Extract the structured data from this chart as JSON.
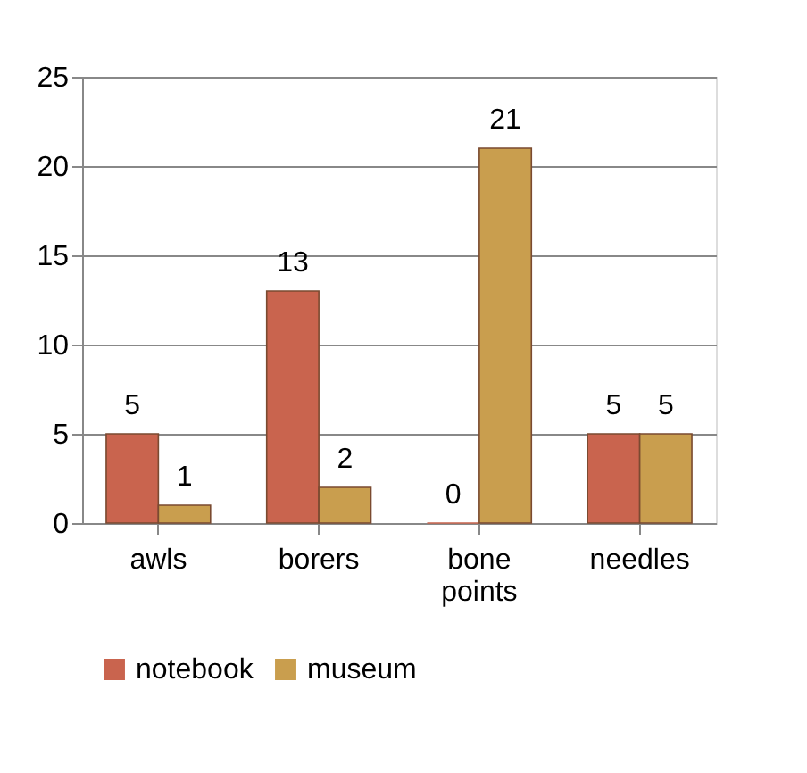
{
  "chart_data": {
    "type": "bar",
    "categories": [
      "awls",
      "borers",
      "bone points",
      "needles"
    ],
    "series": [
      {
        "name": "notebook",
        "color": "#c9644e",
        "values": [
          5,
          13,
          0,
          5
        ]
      },
      {
        "name": "museum",
        "color": "#c99e4e",
        "values": [
          1,
          2,
          21,
          5
        ]
      }
    ],
    "ylim": [
      0,
      25
    ],
    "yticks": [
      0,
      5,
      10,
      15,
      20,
      25
    ],
    "grid": "y",
    "legend": "bottom",
    "data_labels": true
  }
}
